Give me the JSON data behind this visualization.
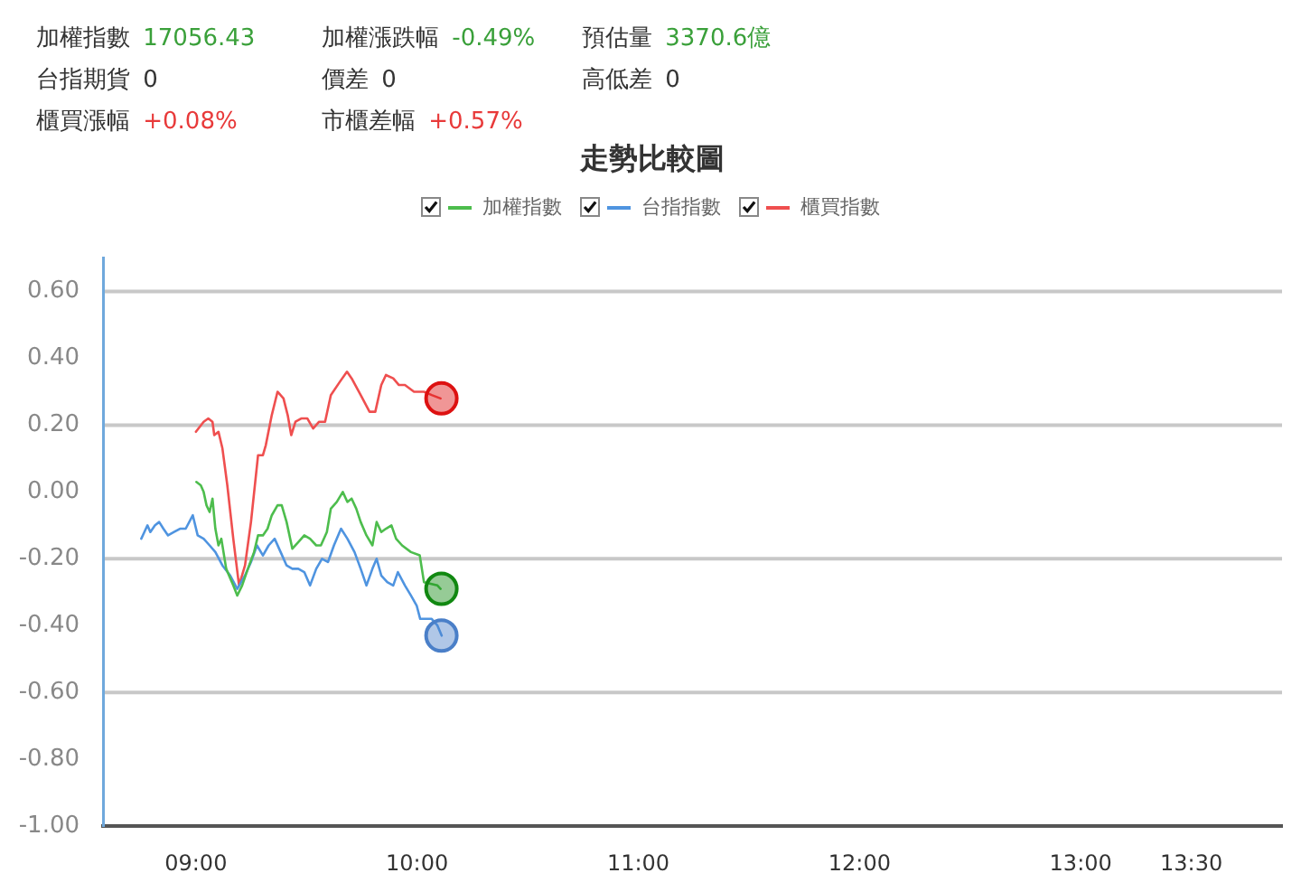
{
  "chart_data": {
    "type": "line",
    "title": "走勢比較圖",
    "annotations": [
      "加權指數 17056.43",
      "加權漲跌幅 -0.49%",
      "預估量 3370.6億",
      "台指期貨 0",
      "價差 0",
      "高低差 0",
      "櫃買漲幅 +0.08%",
      "市櫃差幅 +0.57%"
    ],
    "legend": "top",
    "xlim": [
      8.58,
      13.91
    ],
    "xticks": [
      {
        "value": 9,
        "label": "09:00"
      },
      {
        "value": 10,
        "label": "10:00"
      },
      {
        "value": 11,
        "label": "11:00"
      },
      {
        "value": 12,
        "label": "12:00"
      },
      {
        "value": 13,
        "label": "13:00"
      },
      {
        "value": 13.5,
        "label": "13:30"
      }
    ],
    "ylim": [
      -1.0,
      0.7
    ],
    "yticks": [
      {
        "value": 0.6,
        "label": "0.60"
      },
      {
        "value": 0.4,
        "label": "0.40"
      },
      {
        "value": 0.2,
        "label": "0.20"
      },
      {
        "value": 0,
        "label": "0.00"
      },
      {
        "value": -0.2,
        "label": "-0.20"
      },
      {
        "value": -0.4,
        "label": "-0.40"
      },
      {
        "value": -0.6,
        "label": "-0.60"
      },
      {
        "value": -0.8,
        "label": "-0.80"
      },
      {
        "value": -1.0,
        "label": "-1.00"
      }
    ],
    "ref_lines": [
      {
        "axis": "y",
        "value": 0.6,
        "color": "#c8c8c8"
      },
      {
        "axis": "y",
        "value": 0.2,
        "color": "#c8c8c8"
      },
      {
        "axis": "y",
        "value": -0.2,
        "color": "#c8c8c8"
      },
      {
        "axis": "y",
        "value": -0.6,
        "color": "#c8c8c8"
      }
    ],
    "series": [
      {
        "name": "加權指數",
        "color": "#4dbd4d",
        "marker": "none",
        "x": [
          9.002,
          9.022,
          9.035,
          9.048,
          9.062,
          9.075,
          9.088,
          9.102,
          9.115,
          9.137,
          9.169,
          9.187,
          9.209,
          9.235,
          9.263,
          9.281,
          9.303,
          9.324,
          9.343,
          9.369,
          9.388,
          9.41,
          9.436,
          9.463,
          9.49,
          9.516,
          9.544,
          9.565,
          9.592,
          9.61,
          9.637,
          9.664,
          9.685,
          9.704,
          9.725,
          9.745,
          9.771,
          9.798,
          9.817,
          9.838,
          9.859,
          9.884,
          9.905,
          9.932,
          9.972,
          10.012,
          10.031,
          10.092,
          10.106
        ],
        "values": [
          0.03,
          0.02,
          0.0,
          -0.04,
          -0.06,
          -0.02,
          -0.11,
          -0.16,
          -0.14,
          -0.23,
          -0.28,
          -0.31,
          -0.28,
          -0.23,
          -0.18,
          -0.13,
          -0.13,
          -0.11,
          -0.07,
          -0.04,
          -0.04,
          -0.09,
          -0.17,
          -0.15,
          -0.13,
          -0.14,
          -0.16,
          -0.16,
          -0.12,
          -0.05,
          -0.03,
          0.0,
          -0.03,
          -0.02,
          -0.05,
          -0.09,
          -0.13,
          -0.16,
          -0.09,
          -0.12,
          -0.11,
          -0.1,
          -0.14,
          -0.16,
          -0.18,
          -0.19,
          -0.27,
          -0.28,
          -0.29
        ]
      },
      {
        "name": "台指指數",
        "color": "#4f94e0",
        "marker": "none",
        "x": [
          8.753,
          8.767,
          8.781,
          8.794,
          8.815,
          8.834,
          8.853,
          8.874,
          8.901,
          8.928,
          8.954,
          8.986,
          9.008,
          9.035,
          9.062,
          9.088,
          9.12,
          9.155,
          9.187,
          9.222,
          9.249,
          9.276,
          9.303,
          9.329,
          9.356,
          9.383,
          9.41,
          9.436,
          9.463,
          9.49,
          9.516,
          9.544,
          9.57,
          9.597,
          9.624,
          9.656,
          9.685,
          9.717,
          9.745,
          9.771,
          9.798,
          9.817,
          9.838,
          9.865,
          9.892,
          9.913,
          9.945,
          9.972,
          9.998,
          10.014,
          10.026,
          10.066,
          10.092,
          10.111
        ],
        "values": [
          -0.14,
          -0.12,
          -0.1,
          -0.12,
          -0.1,
          -0.09,
          -0.11,
          -0.13,
          -0.12,
          -0.11,
          -0.11,
          -0.07,
          -0.13,
          -0.14,
          -0.16,
          -0.18,
          -0.22,
          -0.25,
          -0.29,
          -0.25,
          -0.21,
          -0.16,
          -0.19,
          -0.16,
          -0.14,
          -0.18,
          -0.22,
          -0.23,
          -0.23,
          -0.24,
          -0.28,
          -0.23,
          -0.2,
          -0.21,
          -0.16,
          -0.11,
          -0.14,
          -0.18,
          -0.23,
          -0.28,
          -0.23,
          -0.2,
          -0.25,
          -0.27,
          -0.28,
          -0.24,
          -0.28,
          -0.31,
          -0.34,
          -0.38,
          -0.38,
          -0.38,
          -0.4,
          -0.43
        ]
      },
      {
        "name": "櫃買指數",
        "color": "#ef4f4f",
        "marker": "none",
        "x": [
          9.0,
          9.035,
          9.056,
          9.075,
          9.083,
          9.102,
          9.12,
          9.142,
          9.169,
          9.195,
          9.222,
          9.249,
          9.281,
          9.303,
          9.316,
          9.343,
          9.369,
          9.396,
          9.415,
          9.431,
          9.45,
          9.476,
          9.504,
          9.53,
          9.557,
          9.584,
          9.61,
          9.651,
          9.683,
          9.704,
          9.745,
          9.785,
          9.811,
          9.838,
          9.859,
          9.892,
          9.918,
          9.945,
          9.986,
          10.031,
          10.066,
          10.106
        ],
        "values": [
          0.18,
          0.21,
          0.22,
          0.21,
          0.17,
          0.18,
          0.13,
          0.02,
          -0.14,
          -0.28,
          -0.22,
          -0.09,
          0.11,
          0.11,
          0.14,
          0.23,
          0.3,
          0.28,
          0.23,
          0.17,
          0.21,
          0.22,
          0.22,
          0.19,
          0.21,
          0.21,
          0.29,
          0.33,
          0.36,
          0.34,
          0.29,
          0.24,
          0.24,
          0.32,
          0.35,
          0.34,
          0.32,
          0.32,
          0.3,
          0.3,
          0.29,
          0.28
        ]
      },
      {
        "type": "scatter",
        "marker": "circle",
        "x": [
          10.11,
          10.11,
          10.11
        ],
        "values": [
          0.28,
          -0.29,
          -0.43
        ],
        "colors": [
          "#dd1111",
          "#118811",
          "#4a7fc8"
        ]
      }
    ]
  }
}
